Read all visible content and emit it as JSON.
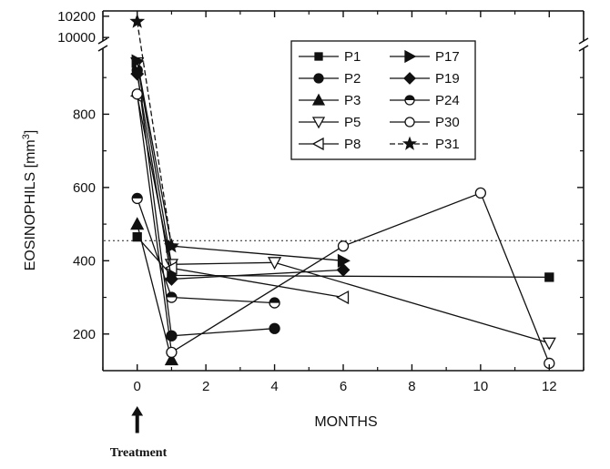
{
  "chart_data": {
    "type": "line",
    "xlabel": "MONTHS",
    "ylabel": "EOSINOPHILS [mm",
    "ylabel_superscript": "3",
    "ylabel_suffix": "]",
    "xlim": [
      -1,
      13
    ],
    "ylim": [
      100,
      10200
    ],
    "y_axis_break": {
      "lower_max": 980,
      "upper_min": 9950,
      "upper_max": 10250
    },
    "x_ticks": [
      "0",
      "2",
      "4",
      "6",
      "8",
      "10",
      "12"
    ],
    "x_tick_values": [
      0,
      2,
      4,
      6,
      8,
      10,
      12
    ],
    "y_ticks_lower": [
      "200",
      "400",
      "600",
      "800"
    ],
    "y_tick_values_lower": [
      200,
      400,
      600,
      800
    ],
    "y_ticks_upper": [
      "10000",
      "10200"
    ],
    "y_tick_values_upper": [
      10000,
      10200
    ],
    "reference_line": {
      "y": 455,
      "style": "dotted"
    },
    "legend_position": "top-right",
    "annotation": {
      "text": "Treatment",
      "x": 0,
      "arrow": "up"
    },
    "grid": false,
    "series": [
      {
        "name": "P1",
        "marker": "square-filled",
        "points": [
          [
            0,
            465
          ],
          [
            1,
            360
          ],
          [
            12,
            355
          ]
        ]
      },
      {
        "name": "P2",
        "marker": "circle-filled",
        "points": [
          [
            0,
            920
          ],
          [
            1,
            195
          ],
          [
            4,
            215
          ]
        ]
      },
      {
        "name": "P3",
        "marker": "triangle-up-filled",
        "points": [
          [
            0,
            500
          ],
          [
            1,
            130
          ]
        ]
      },
      {
        "name": "P5",
        "marker": "triangle-down-open",
        "points": [
          [
            0,
            940
          ],
          [
            1,
            390
          ],
          [
            4,
            395
          ],
          [
            12,
            175
          ]
        ]
      },
      {
        "name": "P8",
        "marker": "triangle-left-open",
        "points": [
          [
            0,
            850
          ],
          [
            1,
            380
          ],
          [
            6,
            300
          ]
        ]
      },
      {
        "name": "P17",
        "marker": "triangle-right-filled",
        "points": [
          [
            0,
            945
          ],
          [
            1,
            440
          ],
          [
            6,
            400
          ]
        ]
      },
      {
        "name": "P19",
        "marker": "diamond-filled",
        "points": [
          [
            0,
            910
          ],
          [
            1,
            350
          ],
          [
            6,
            375
          ]
        ]
      },
      {
        "name": "P24",
        "marker": "circle-half",
        "points": [
          [
            0,
            570
          ],
          [
            1,
            300
          ],
          [
            4,
            285
          ]
        ]
      },
      {
        "name": "P30",
        "marker": "circle-open",
        "points": [
          [
            0,
            855
          ],
          [
            1,
            150
          ],
          [
            6,
            440
          ],
          [
            10,
            585
          ],
          [
            12,
            120
          ]
        ]
      },
      {
        "name": "P31",
        "marker": "star-filled",
        "dashed": true,
        "points": [
          [
            0,
            10150
          ],
          [
            1,
            440
          ]
        ]
      }
    ]
  }
}
